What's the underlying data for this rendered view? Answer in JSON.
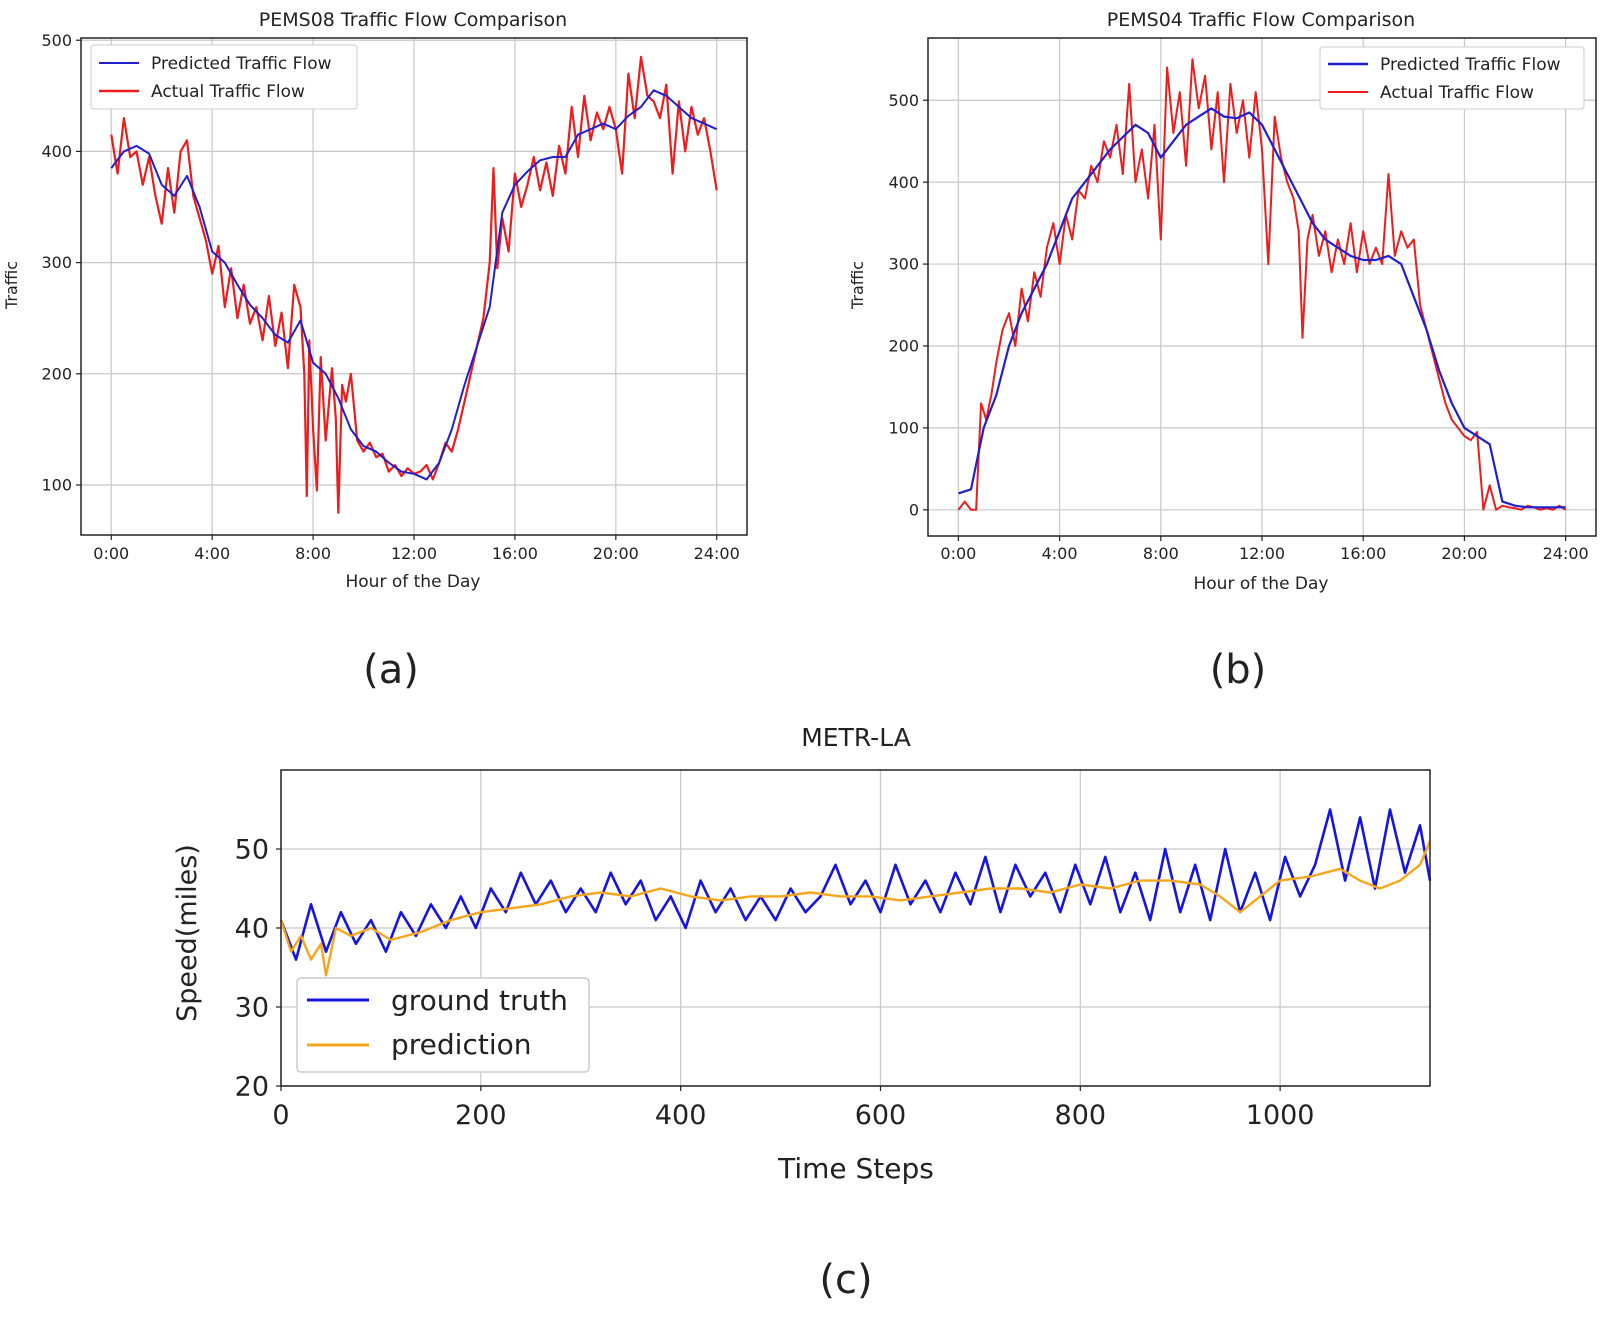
{
  "panel_labels": [
    "(a)",
    "(b)",
    "(c)"
  ],
  "colors": {
    "predicted": "#1f1fd0",
    "actual": "#ee1c1c",
    "ground_truth": "#1515e0",
    "prediction": "#f4a61c",
    "grid": "#c8c8c8",
    "axes": "#222222"
  },
  "chart_data": [
    {
      "type": "line",
      "title": "PEMS08 Traffic Flow Comparison",
      "xlabel": "Hour of the Day",
      "ylabel": "Traffic",
      "x_ticks": [
        "0:00",
        "4:00",
        "8:00",
        "12:00",
        "16:00",
        "20:00",
        "24:00"
      ],
      "y_ticks": [
        100,
        200,
        300,
        400,
        500
      ],
      "xlim": [
        -1.2,
        25.2
      ],
      "ylim": [
        55,
        502
      ],
      "grid": true,
      "legend_position": "top-left",
      "series": [
        {
          "name": "Predicted Traffic Flow",
          "x": [
            0,
            0.5,
            1,
            1.5,
            2,
            2.5,
            3,
            3.5,
            4,
            4.5,
            5,
            5.5,
            6,
            6.5,
            7,
            7.5,
            8,
            8.5,
            9,
            9.5,
            10,
            10.5,
            11,
            11.5,
            12,
            12.5,
            13,
            13.5,
            14,
            14.5,
            15,
            15.5,
            16,
            16.5,
            17,
            17.5,
            18,
            18.5,
            19,
            19.5,
            20,
            20.5,
            21,
            21.5,
            22,
            22.5,
            23,
            23.5,
            24
          ],
          "values": [
            385,
            400,
            405,
            398,
            370,
            360,
            378,
            350,
            310,
            300,
            280,
            262,
            250,
            235,
            228,
            248,
            210,
            200,
            178,
            150,
            135,
            130,
            120,
            112,
            110,
            105,
            120,
            150,
            190,
            225,
            260,
            345,
            370,
            382,
            392,
            395,
            395,
            415,
            420,
            425,
            420,
            432,
            440,
            455,
            450,
            440,
            430,
            425,
            420
          ]
        },
        {
          "name": "Actual Traffic Flow",
          "x": [
            0,
            0.25,
            0.5,
            0.75,
            1,
            1.25,
            1.5,
            1.75,
            2,
            2.25,
            2.5,
            2.75,
            3,
            3.25,
            3.5,
            3.75,
            4,
            4.25,
            4.5,
            4.75,
            5,
            5.25,
            5.5,
            5.75,
            6,
            6.25,
            6.5,
            6.75,
            7,
            7.25,
            7.5,
            7.65,
            7.75,
            7.85,
            8,
            8.15,
            8.3,
            8.5,
            8.75,
            8.9,
            9,
            9.15,
            9.3,
            9.5,
            9.75,
            10,
            10.25,
            10.5,
            10.75,
            11,
            11.25,
            11.5,
            11.75,
            12,
            12.25,
            12.5,
            12.75,
            13,
            13.25,
            13.5,
            13.75,
            14,
            14.25,
            14.5,
            14.75,
            15,
            15.15,
            15.3,
            15.5,
            15.75,
            16,
            16.25,
            16.5,
            16.75,
            17,
            17.25,
            17.5,
            17.75,
            18,
            18.25,
            18.5,
            18.75,
            19,
            19.25,
            19.5,
            19.75,
            20,
            20.25,
            20.5,
            20.75,
            21,
            21.25,
            21.5,
            21.75,
            22,
            22.25,
            22.5,
            22.75,
            23,
            23.25,
            23.5,
            23.75,
            24
          ],
          "values": [
            415,
            380,
            430,
            395,
            400,
            370,
            395,
            360,
            335,
            385,
            345,
            400,
            410,
            360,
            340,
            320,
            290,
            315,
            260,
            295,
            250,
            280,
            245,
            260,
            230,
            270,
            225,
            255,
            205,
            280,
            260,
            200,
            90,
            230,
            150,
            95,
            215,
            140,
            205,
            160,
            75,
            190,
            175,
            200,
            140,
            130,
            138,
            125,
            128,
            112,
            118,
            108,
            115,
            110,
            112,
            118,
            105,
            120,
            138,
            130,
            150,
            175,
            200,
            225,
            250,
            300,
            385,
            295,
            340,
            310,
            380,
            350,
            370,
            395,
            365,
            390,
            360,
            405,
            380,
            440,
            395,
            450,
            410,
            435,
            420,
            440,
            420,
            380,
            470,
            430,
            485,
            450,
            445,
            430,
            460,
            380,
            445,
            400,
            440,
            415,
            430,
            400,
            365
          ]
        }
      ]
    },
    {
      "type": "line",
      "title": "PEMS04 Traffic Flow Comparison",
      "xlabel": "Hour of the Day",
      "ylabel": "Traffic",
      "x_ticks": [
        "0:00",
        "4:00",
        "8:00",
        "12:00",
        "16:00",
        "20:00",
        "24:00"
      ],
      "y_ticks": [
        0,
        100,
        200,
        300,
        400,
        500
      ],
      "xlim": [
        -1.2,
        25.2
      ],
      "ylim": [
        -32,
        576
      ],
      "grid": true,
      "legend_position": "top-right",
      "series": [
        {
          "name": "Predicted Traffic Flow",
          "x": [
            0,
            0.5,
            1,
            1.5,
            2,
            2.5,
            3,
            3.5,
            4,
            4.5,
            5,
            5.5,
            6,
            6.5,
            7,
            7.5,
            8,
            8.5,
            9,
            9.5,
            10,
            10.5,
            11,
            11.5,
            12,
            12.5,
            13,
            13.5,
            14,
            14.5,
            15,
            15.5,
            16,
            16.5,
            17,
            17.5,
            18,
            18.5,
            19,
            19.5,
            20,
            20.5,
            21,
            21.5,
            22,
            22.5,
            23,
            23.5,
            24
          ],
          "values": [
            20,
            25,
            100,
            140,
            200,
            240,
            270,
            300,
            340,
            380,
            400,
            420,
            440,
            455,
            470,
            460,
            430,
            450,
            470,
            480,
            490,
            480,
            478,
            485,
            470,
            440,
            410,
            380,
            350,
            330,
            320,
            310,
            305,
            305,
            310,
            300,
            260,
            220,
            170,
            130,
            100,
            90,
            80,
            10,
            5,
            3,
            3,
            3,
            3
          ]
        },
        {
          "name": "Actual Traffic Flow",
          "x": [
            0,
            0.25,
            0.5,
            0.7,
            0.9,
            1.1,
            1.3,
            1.5,
            1.75,
            2,
            2.25,
            2.5,
            2.75,
            3,
            3.25,
            3.5,
            3.75,
            4,
            4.25,
            4.5,
            4.75,
            5,
            5.25,
            5.5,
            5.75,
            6,
            6.25,
            6.5,
            6.75,
            7,
            7.25,
            7.5,
            7.75,
            8,
            8.25,
            8.5,
            8.75,
            9,
            9.25,
            9.5,
            9.75,
            10,
            10.25,
            10.5,
            10.75,
            11,
            11.25,
            11.5,
            11.75,
            12,
            12.25,
            12.5,
            12.75,
            13,
            13.25,
            13.45,
            13.6,
            13.8,
            14,
            14.25,
            14.5,
            14.75,
            15,
            15.25,
            15.5,
            15.75,
            16,
            16.25,
            16.5,
            16.75,
            17,
            17.25,
            17.5,
            17.75,
            18,
            18.25,
            18.5,
            18.75,
            19,
            19.25,
            19.5,
            19.75,
            20,
            20.25,
            20.5,
            20.75,
            21,
            21.25,
            21.5,
            21.75,
            22,
            22.25,
            22.5,
            22.75,
            23,
            23.25,
            23.5,
            23.75,
            24
          ],
          "values": [
            0,
            10,
            0,
            0,
            130,
            110,
            140,
            180,
            220,
            240,
            200,
            270,
            230,
            290,
            260,
            320,
            350,
            300,
            360,
            330,
            390,
            380,
            420,
            400,
            450,
            430,
            470,
            410,
            520,
            400,
            440,
            380,
            470,
            330,
            540,
            460,
            510,
            420,
            550,
            490,
            530,
            440,
            510,
            400,
            520,
            460,
            500,
            430,
            510,
            440,
            300,
            480,
            430,
            400,
            380,
            340,
            210,
            330,
            360,
            310,
            340,
            290,
            330,
            300,
            350,
            290,
            340,
            300,
            320,
            300,
            410,
            310,
            340,
            320,
            330,
            250,
            220,
            190,
            160,
            130,
            110,
            100,
            90,
            85,
            95,
            0,
            30,
            0,
            5,
            3,
            2,
            0,
            5,
            3,
            0,
            2,
            0,
            5,
            0
          ]
        }
      ]
    },
    {
      "type": "line",
      "title": "METR-LA",
      "xlabel": "Time Steps",
      "ylabel": "Speed(miles)",
      "x_ticks": [
        0,
        200,
        400,
        600,
        800,
        1000
      ],
      "y_ticks": [
        20,
        30,
        40,
        50
      ],
      "xlim": [
        0,
        1150
      ],
      "ylim": [
        20,
        60
      ],
      "grid": true,
      "legend_position": "bottom-left",
      "series": [
        {
          "name": "ground truth",
          "x": [
            0,
            15,
            30,
            45,
            60,
            75,
            90,
            105,
            120,
            135,
            150,
            165,
            180,
            195,
            210,
            225,
            240,
            255,
            270,
            285,
            300,
            315,
            330,
            345,
            360,
            375,
            390,
            405,
            420,
            435,
            450,
            465,
            480,
            495,
            510,
            525,
            540,
            555,
            570,
            585,
            600,
            615,
            630,
            645,
            660,
            675,
            690,
            705,
            720,
            735,
            750,
            765,
            780,
            795,
            810,
            825,
            840,
            855,
            870,
            885,
            900,
            915,
            930,
            945,
            960,
            975,
            990,
            1005,
            1020,
            1035,
            1050,
            1065,
            1080,
            1095,
            1110,
            1125,
            1140,
            1150
          ],
          "values": [
            41,
            36,
            43,
            37,
            42,
            38,
            41,
            37,
            42,
            39,
            43,
            40,
            44,
            40,
            45,
            42,
            47,
            43,
            46,
            42,
            45,
            42,
            47,
            43,
            46,
            41,
            44,
            40,
            46,
            42,
            45,
            41,
            44,
            41,
            45,
            42,
            44,
            48,
            43,
            46,
            42,
            48,
            43,
            46,
            42,
            47,
            43,
            49,
            42,
            48,
            44,
            47,
            42,
            48,
            43,
            49,
            42,
            47,
            41,
            50,
            42,
            48,
            41,
            50,
            42,
            47,
            41,
            49,
            44,
            48,
            55,
            46,
            54,
            45,
            55,
            47,
            53,
            46
          ]
        },
        {
          "name": "prediction",
          "x": [
            0,
            10,
            20,
            30,
            40,
            45,
            55,
            70,
            90,
            110,
            140,
            170,
            200,
            230,
            260,
            290,
            320,
            350,
            380,
            410,
            440,
            470,
            500,
            530,
            560,
            590,
            620,
            650,
            680,
            710,
            740,
            770,
            800,
            830,
            860,
            890,
            920,
            940,
            960,
            980,
            1000,
            1030,
            1060,
            1080,
            1100,
            1120,
            1140,
            1150
          ],
          "values": [
            41,
            37,
            39,
            36,
            38,
            34,
            40,
            39,
            40,
            38.5,
            39.5,
            41,
            42,
            42.5,
            43,
            44,
            44.5,
            44,
            45,
            44,
            43.5,
            44,
            44,
            44.5,
            44,
            44,
            43.5,
            44,
            44.5,
            45,
            45,
            44.5,
            45.5,
            45,
            46,
            46,
            45.5,
            44,
            42,
            44,
            46,
            46.5,
            47.5,
            46,
            45,
            46,
            48,
            51
          ]
        }
      ]
    }
  ]
}
